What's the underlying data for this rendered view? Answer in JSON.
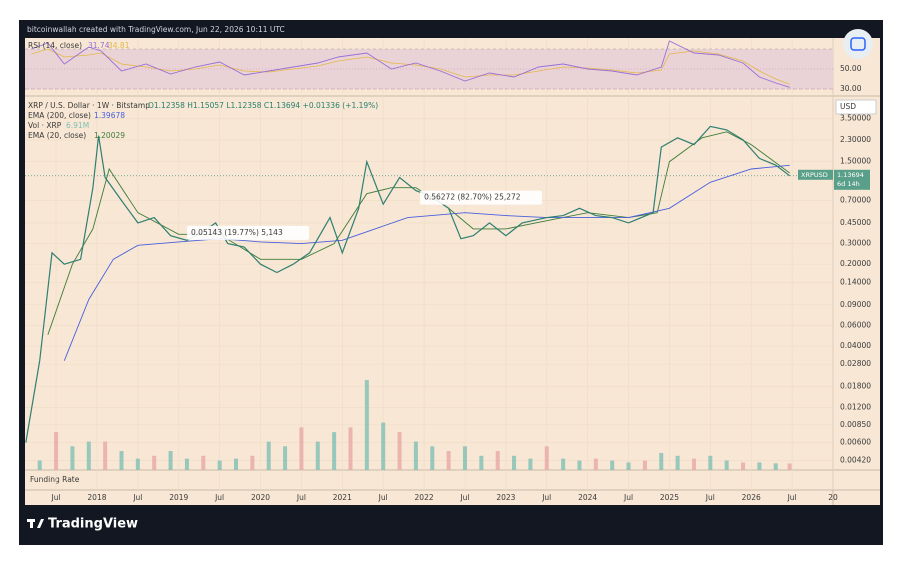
{
  "header": "bitcoinwallah created with TradingView.com, Jun 22, 2026 10:11 UTC",
  "logo": "TradingView",
  "chart_data": {
    "type": "line",
    "log_scale": true,
    "currency": "USD",
    "symbol_title": "XRP / U.S. Dollar · 1W · Bitstamp",
    "ohlc": "O1.12358 H1.15057 L1.12358 C1.13694 +0.01336 (+1.19%)",
    "xlim": [
      2017.12,
      2027.0
    ],
    "xticks": [
      {
        "value": 2017.5,
        "label": "Jul"
      },
      2018,
      {
        "value": 2018.5,
        "label": "Jul"
      },
      2019,
      {
        "value": 2019.5,
        "label": "Jul"
      },
      2020,
      {
        "value": 2020.5,
        "label": "Jul"
      },
      2021,
      {
        "value": 2021.5,
        "label": "Jul"
      },
      2022,
      {
        "value": 2022.5,
        "label": "Jul"
      },
      2023,
      {
        "value": 2023.5,
        "label": "Jul"
      },
      2024,
      {
        "value": 2024.5,
        "label": "Jul"
      },
      2025,
      {
        "value": 2025.5,
        "label": "Jul"
      },
      2026,
      {
        "value": 2026.5,
        "label": "Jul"
      },
      {
        "value": 2027,
        "label": "20"
      }
    ],
    "ylim": [
      0.0035,
      5.35
    ],
    "yticks": [
      {
        "value": 3.5,
        "label": "3.50000"
      },
      {
        "value": 2.3,
        "label": "2.30000"
      },
      {
        "value": 1.5,
        "label": "1.50000"
      },
      {
        "value": 0.7,
        "label": "0.70000"
      },
      {
        "value": 0.45,
        "label": "0.45000"
      },
      {
        "value": 0.3,
        "label": "0.30000"
      },
      {
        "value": 0.2,
        "label": "0.20000"
      },
      {
        "value": 0.14,
        "label": "0.14000"
      },
      {
        "value": 0.09,
        "label": "0.09000"
      },
      {
        "value": 0.06,
        "label": "0.06000"
      },
      {
        "value": 0.04,
        "label": "0.04000"
      },
      {
        "value": 0.028,
        "label": "0.02800"
      },
      {
        "value": 0.018,
        "label": "0.01800"
      },
      {
        "value": 0.012,
        "label": "0.01200"
      },
      {
        "value": 0.0085,
        "label": "0.00850"
      },
      {
        "value": 0.006,
        "label": "0.00600"
      },
      {
        "value": 0.0042,
        "label": "0.00420"
      }
    ],
    "series": [
      {
        "name": "XRPUSD",
        "color": "#2f7f72",
        "x": [
          2017.13,
          2017.3,
          2017.45,
          2017.6,
          2017.8,
          2017.95,
          2018.02,
          2018.1,
          2018.3,
          2018.5,
          2018.7,
          2018.9,
          2019.1,
          2019.3,
          2019.45,
          2019.6,
          2019.8,
          2020.0,
          2020.2,
          2020.4,
          2020.6,
          2020.85,
          2021.0,
          2021.2,
          2021.3,
          2021.5,
          2021.7,
          2021.9,
          2022.1,
          2022.3,
          2022.45,
          2022.6,
          2022.8,
          2023.0,
          2023.2,
          2023.5,
          2023.7,
          2023.9,
          2024.1,
          2024.3,
          2024.5,
          2024.8,
          2024.9,
          2025.1,
          2025.3,
          2025.5,
          2025.7,
          2025.9,
          2026.1,
          2026.3,
          2026.47
        ],
        "values": [
          0.006,
          0.03,
          0.25,
          0.2,
          0.22,
          0.9,
          2.5,
          1.1,
          0.7,
          0.45,
          0.5,
          0.35,
          0.32,
          0.38,
          0.45,
          0.3,
          0.28,
          0.2,
          0.17,
          0.2,
          0.25,
          0.5,
          0.25,
          0.6,
          1.5,
          0.65,
          1.1,
          0.85,
          0.75,
          0.6,
          0.33,
          0.35,
          0.45,
          0.35,
          0.45,
          0.5,
          0.52,
          0.6,
          0.52,
          0.5,
          0.45,
          0.55,
          2.0,
          2.4,
          2.1,
          3.0,
          2.8,
          2.3,
          1.6,
          1.4,
          1.13694
        ]
      },
      {
        "name": "EMA (200, close)",
        "color": "#4a5fe0",
        "x": [
          2017.6,
          2017.9,
          2018.2,
          2018.5,
          2019.0,
          2019.5,
          2020.0,
          2020.5,
          2021.0,
          2021.4,
          2021.8,
          2022.5,
          2023.0,
          2023.5,
          2024.0,
          2024.5,
          2025.0,
          2025.5,
          2026.0,
          2026.47
        ],
        "values": [
          0.03,
          0.1,
          0.22,
          0.29,
          0.31,
          0.33,
          0.31,
          0.3,
          0.32,
          0.4,
          0.5,
          0.55,
          0.52,
          0.5,
          0.5,
          0.5,
          0.6,
          1.0,
          1.3,
          1.39678
        ]
      },
      {
        "name": "EMA (20, close)",
        "color": "#3f7d3a",
        "x": [
          2017.4,
          2017.7,
          2017.95,
          2018.15,
          2018.5,
          2019.0,
          2019.5,
          2020.0,
          2020.5,
          2020.9,
          2021.3,
          2021.6,
          2021.9,
          2022.3,
          2022.6,
          2023.0,
          2023.5,
          2024.0,
          2024.5,
          2024.85,
          2025.0,
          2025.4,
          2025.7,
          2026.0,
          2026.47
        ],
        "values": [
          0.05,
          0.2,
          0.4,
          1.3,
          0.55,
          0.36,
          0.36,
          0.22,
          0.22,
          0.3,
          0.8,
          0.9,
          0.9,
          0.6,
          0.4,
          0.4,
          0.47,
          0.55,
          0.5,
          0.55,
          1.5,
          2.4,
          2.7,
          2.1,
          1.20029
        ]
      }
    ],
    "volume": {
      "name": "Vol · XRP",
      "color": "#7fbfb4",
      "last_label": "6.91M",
      "x": [
        2017.3,
        2017.5,
        2017.7,
        2017.9,
        2018.1,
        2018.3,
        2018.5,
        2018.7,
        2018.9,
        2019.1,
        2019.3,
        2019.5,
        2019.7,
        2019.9,
        2020.1,
        2020.3,
        2020.5,
        2020.7,
        2020.9,
        2021.1,
        2021.3,
        2021.5,
        2021.7,
        2021.9,
        2022.1,
        2022.3,
        2022.5,
        2022.7,
        2022.9,
        2023.1,
        2023.3,
        2023.5,
        2023.7,
        2023.9,
        2024.1,
        2024.3,
        2024.5,
        2024.7,
        2024.9,
        2025.1,
        2025.3,
        2025.5,
        2025.7,
        2025.9,
        2026.1,
        2026.3,
        2026.47
      ],
      "values": [
        10,
        40,
        25,
        30,
        30,
        20,
        12,
        15,
        20,
        12,
        15,
        10,
        12,
        15,
        30,
        25,
        45,
        30,
        40,
        45,
        95,
        50,
        40,
        30,
        25,
        20,
        25,
        15,
        20,
        15,
        12,
        25,
        12,
        10,
        12,
        10,
        8,
        10,
        18,
        15,
        12,
        15,
        10,
        8,
        8,
        7,
        6.91
      ]
    },
    "rsi": {
      "name": "RSI (14, close)",
      "color": "#9a6fd6",
      "ma_color": "#e3b84a",
      "ylim": [
        24,
        81
      ],
      "yticks": [
        {
          "value": 50,
          "label": "50.00"
        },
        {
          "value": 30,
          "label": "30.00"
        }
      ],
      "bands": [
        30,
        70
      ],
      "x": [
        2017.2,
        2017.4,
        2017.6,
        2017.9,
        2018.05,
        2018.3,
        2018.6,
        2018.9,
        2019.2,
        2019.5,
        2019.8,
        2020.1,
        2020.4,
        2020.7,
        2020.95,
        2021.3,
        2021.6,
        2021.9,
        2022.2,
        2022.5,
        2022.8,
        2023.1,
        2023.4,
        2023.7,
        2024.0,
        2024.3,
        2024.6,
        2024.9,
        2025.0,
        2025.3,
        2025.6,
        2025.9,
        2026.1,
        2026.3,
        2026.47
      ],
      "values": [
        70,
        76,
        55,
        72,
        68,
        48,
        55,
        45,
        52,
        57,
        44,
        48,
        52,
        56,
        62,
        66,
        50,
        56,
        48,
        38,
        46,
        42,
        52,
        55,
        50,
        48,
        44,
        52,
        78,
        66,
        64,
        56,
        42,
        36,
        31.74
      ],
      "ma": [
        65,
        70,
        62,
        64,
        66,
        55,
        52,
        48,
        50,
        54,
        48,
        47,
        50,
        53,
        58,
        62,
        56,
        54,
        50,
        42,
        44,
        44,
        48,
        52,
        51,
        49,
        46,
        49,
        65,
        68,
        65,
        58,
        48,
        40,
        34.81
      ]
    },
    "annotations": [
      {
        "text": "0.05143 (19.77%) 5,143",
        "x": 2019.15,
        "y": 0.37
      },
      {
        "text": "0.56272 (82.70%) 25,272",
        "x": 2022.0,
        "y": 0.74
      }
    ],
    "last_price_tag": "XRPUSD",
    "countdown": "6d 14h",
    "pane_label": "Funding Rate"
  }
}
